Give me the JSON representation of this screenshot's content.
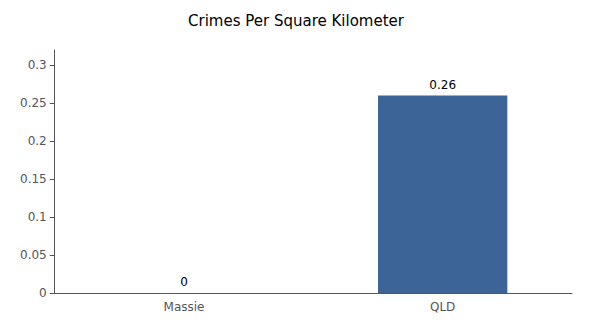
{
  "chart_data": {
    "type": "bar",
    "title": "Crimes Per Square Kilometer",
    "categories": [
      "Massie",
      "QLD"
    ],
    "values": [
      0,
      0.26
    ],
    "color": "#3d6496",
    "ylim": [
      0,
      0.32
    ],
    "yticks": [
      0,
      0.05,
      0.1,
      0.15,
      0.2,
      0.25,
      0.3
    ],
    "grid": false,
    "data_labels": true
  }
}
